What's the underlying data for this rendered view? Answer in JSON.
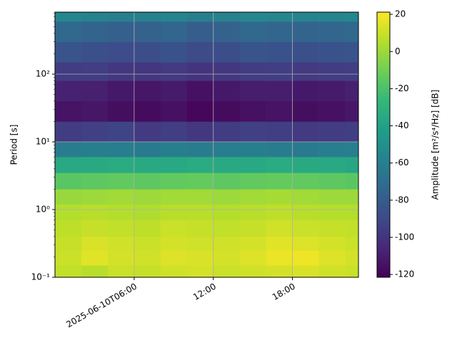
{
  "chart_data": {
    "type": "heatmap",
    "colormap": "viridis",
    "grid": true,
    "y_scale": "log",
    "ylabel": "Period [s]",
    "colorbar_label": "Amplitude [m²/s⁴/Hz] [dB]",
    "x_edges": [
      "2025-06-10T00:00",
      "2025-06-10T02:00",
      "2025-06-10T04:00",
      "2025-06-10T06:00",
      "2025-06-10T08:00",
      "2025-06-10T10:00",
      "2025-06-10T12:00",
      "2025-06-10T14:00",
      "2025-06-10T16:00",
      "2025-06-10T18:00",
      "2025-06-10T20:00",
      "2025-06-10T22:00",
      "2025-06-10T23:00"
    ],
    "y_edges": [
      0.1,
      0.15,
      0.25,
      0.4,
      0.7,
      1.2,
      2,
      3.5,
      6,
      10,
      20,
      40,
      80,
      150,
      300,
      600,
      824
    ],
    "z": [
      [
        8,
        6,
        10,
        9,
        11,
        12,
        10,
        11,
        12,
        13,
        11,
        10
      ],
      [
        10,
        15,
        12,
        11,
        14,
        13,
        12,
        14,
        17,
        18,
        14,
        12
      ],
      [
        9,
        13,
        11,
        10,
        12,
        11,
        11,
        12,
        15,
        14,
        12,
        10
      ],
      [
        7,
        9,
        8,
        7,
        10,
        9,
        8,
        9,
        11,
        10,
        9,
        8
      ],
      [
        5,
        6,
        5,
        4,
        6,
        6,
        5,
        6,
        7,
        6,
        5,
        5
      ],
      [
        -1,
        0,
        1,
        0,
        1,
        1,
        0,
        1,
        2,
        1,
        0,
        0
      ],
      [
        -16,
        -15,
        -14,
        -15,
        -14,
        -13,
        -15,
        -14,
        -13,
        -14,
        -15,
        -16
      ],
      [
        -36,
        -35,
        -34,
        -35,
        -36,
        -34,
        -35,
        -36,
        -34,
        -35,
        -36,
        -37
      ],
      [
        -62,
        -60,
        -61,
        -63,
        -60,
        -62,
        -61,
        -60,
        -62,
        -63,
        -61,
        -60
      ],
      [
        -96,
        -94,
        -92,
        -97,
        -95,
        -98,
        -96,
        -94,
        -95,
        -97,
        -96,
        -95
      ],
      [
        -114,
        -113,
        -116,
        -117,
        -115,
        -119,
        -117,
        -115,
        -114,
        -116,
        -115,
        -113
      ],
      [
        -108,
        -109,
        -112,
        -113,
        -111,
        -115,
        -112,
        -110,
        -110,
        -112,
        -111,
        -109
      ],
      [
        -96,
        -95,
        -98,
        -99,
        -97,
        -100,
        -98,
        -96,
        -95,
        -97,
        -96,
        -95
      ],
      [
        -84,
        -86,
        -88,
        -87,
        -85,
        -89,
        -87,
        -84,
        -85,
        -86,
        -85,
        -84
      ],
      [
        -74,
        -76,
        -78,
        -77,
        -75,
        -79,
        -77,
        -74,
        -75,
        -76,
        -75,
        -74
      ],
      [
        -56,
        -58,
        -60,
        -59,
        -57,
        -60,
        -58,
        -55,
        -56,
        -57,
        -57,
        -56
      ]
    ],
    "xlim": [
      "2025-06-10T00:00",
      "2025-06-10T23:00"
    ],
    "xticks": [
      "2025-06-10T06:00",
      {
        "value": "2025-06-10T12:00",
        "label": "12:00"
      },
      {
        "value": "2025-06-10T18:00",
        "label": "18:00"
      }
    ],
    "ylim": [
      0.1,
      824
    ],
    "yticks": [
      {
        "value": 0.1,
        "label": "10⁻¹"
      },
      {
        "value": 1,
        "label": "10⁰"
      },
      {
        "value": 10,
        "label": "10¹"
      },
      {
        "value": 100,
        "label": "10²"
      }
    ],
    "clim": [
      -121.5,
      21.2
    ],
    "cticks": [
      -120,
      -100,
      -80,
      -60,
      -40,
      -20,
      0,
      20
    ]
  }
}
